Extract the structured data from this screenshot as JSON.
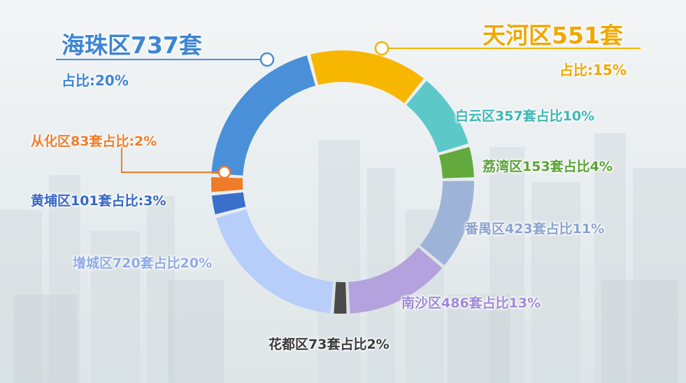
{
  "chart_data": {
    "type": "pie",
    "style": "donut",
    "categories": [
      "天河区",
      "白云区",
      "荔湾区",
      "番禺区",
      "南沙区",
      "花都区",
      "增城区",
      "黄埔区",
      "从化区",
      "海珠区"
    ],
    "values": [
      551,
      357,
      153,
      423,
      486,
      73,
      720,
      101,
      83,
      737
    ],
    "units": "套",
    "share": [
      "15%",
      "10%",
      "4%",
      "11%",
      "13%",
      "2%",
      "20%",
      "3%",
      "2%",
      "20%"
    ],
    "colors": [
      "#f7b600",
      "#5cc8c8",
      "#62aa3c",
      "#9db4d8",
      "#b3a2de",
      "#4a4a4a",
      "#b7cdfa",
      "#3a6fcc",
      "#f07c2a",
      "#4a90d8"
    ],
    "labels": {
      "tianhe": {
        "name": "天河区551套",
        "share": "占比:15%"
      },
      "baiyun": "白云区357套占比10%",
      "liwan": "荔湾区153套占比4%",
      "panyu": "番禺区423套占比11%",
      "nansha": "南沙区486套占比13%",
      "huadu": "花都区73套占比2%",
      "zengcheng": "增城区720套占比20%",
      "huangpu": "黄埔区101套占比:3%",
      "conghua": "从化区83套占比:2%",
      "haizhu": {
        "name": "海珠区737套",
        "share": "占比:20%"
      }
    }
  }
}
